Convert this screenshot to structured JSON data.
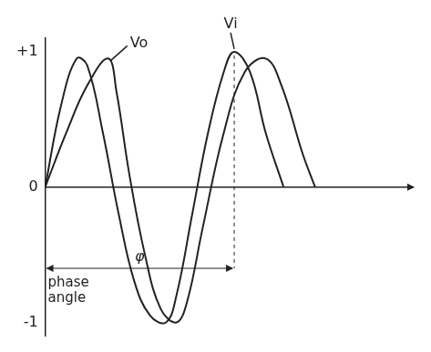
{
  "chart_data": {
    "type": "line",
    "series": [
      {
        "name": "Vi",
        "color": "#222222",
        "x": [
          0,
          15,
          30,
          40,
          55,
          70,
          85,
          100,
          115,
          125,
          140,
          155,
          170,
          180,
          195,
          210,
          227
        ],
        "values": [
          0,
          0.6,
          0.95,
          0.9,
          0.4,
          -0.2,
          -0.7,
          -0.95,
          -1.0,
          -0.8,
          -0.2,
          0.4,
          0.85,
          1.0,
          0.85,
          0.4,
          0
        ]
      },
      {
        "name": "Vo",
        "color": "#222222",
        "x": [
          0,
          20,
          40,
          60,
          68,
          80,
          95,
          110,
          125,
          135,
          150,
          170,
          190,
          210,
          225,
          245,
          257
        ],
        "values": [
          0,
          0.4,
          0.75,
          0.95,
          0.7,
          0.1,
          -0.5,
          -0.9,
          -1.0,
          -0.85,
          -0.3,
          0.4,
          0.85,
          0.95,
          0.75,
          0.25,
          0
        ]
      }
    ],
    "xlim": [
      0,
      350
    ],
    "ylim": [
      -1.1,
      1.1
    ],
    "yticks": [
      {
        "value": 1,
        "label": "+1"
      },
      0,
      -1
    ],
    "grid": false,
    "tick_labels": "y",
    "annotations": [
      "φ",
      "phase angle"
    ]
  }
}
